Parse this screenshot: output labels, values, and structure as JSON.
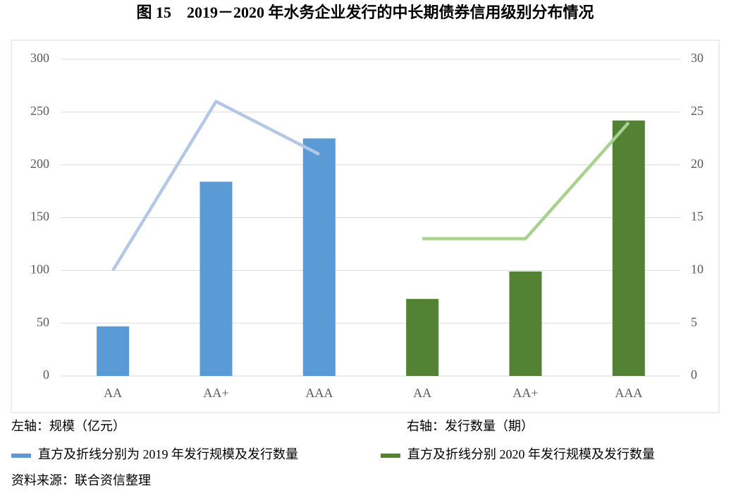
{
  "chart_data": {
    "type": "bar",
    "title": "图 15　2019－2020 年水务企业发行的中长期债券信用级别分布情况",
    "categories": [
      "AA",
      "AA+",
      "AAA",
      "AA",
      "AA+",
      "AAA"
    ],
    "series": [
      {
        "name": "直方及折线分别为 2019 年发行规模及发行数量",
        "type": "bar",
        "color": "#5b9bd5",
        "values": [
          47,
          184,
          225,
          null,
          null,
          null
        ]
      },
      {
        "name": "直方及折线分别 2020 年发行规模及发行数量",
        "type": "bar",
        "color": "#548235",
        "values": [
          null,
          null,
          null,
          73,
          99,
          242
        ]
      },
      {
        "type": "line",
        "axis": "y2",
        "color": "#b4c7e7",
        "values": [
          10,
          26,
          21,
          null,
          null,
          null
        ]
      },
      {
        "type": "line",
        "axis": "y2",
        "color": "#a9d18e",
        "values": [
          null,
          null,
          null,
          13,
          13,
          24
        ]
      }
    ],
    "ylim": [
      0,
      300
    ],
    "yticks": [
      0,
      50,
      100,
      150,
      200,
      250,
      300
    ],
    "y2lim": [
      0,
      30
    ],
    "y2ticks": [
      0,
      5,
      10,
      15,
      20,
      25,
      30
    ],
    "grid": true,
    "left_axis_note": "左轴：规模（亿元）",
    "right_axis_note": "右轴：发行数量（期）",
    "source": "资料来源：联合资信整理"
  }
}
